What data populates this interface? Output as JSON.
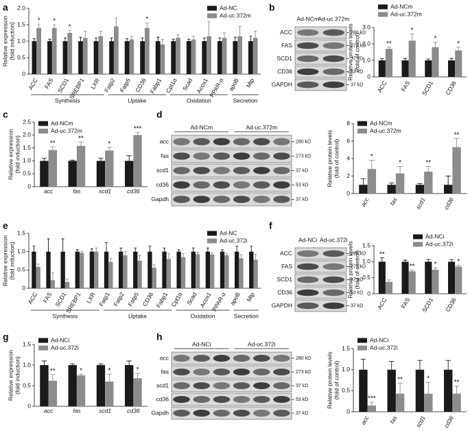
{
  "panels": [
    "a",
    "b",
    "c",
    "d",
    "e",
    "f",
    "g",
    "h"
  ],
  "blots": [
    {
      "headers": [
        "Ad-NCm",
        "Ad-uc.372m"
      ],
      "rows": [
        {
          "label": "ACC",
          "size": "280 kD"
        },
        {
          "label": "FAS",
          "size": "273 kD"
        },
        {
          "label": "SCD1",
          "size": "37 kD"
        },
        {
          "label": "CD36",
          "size": "53 kD"
        },
        {
          "label": "GAPDH",
          "size": "37 kD"
        }
      ]
    },
    {
      "headers": [
        "Ad-NCm",
        "Ad-uc.372m"
      ],
      "rows": [
        {
          "label": "acc",
          "size": "280 kD"
        },
        {
          "label": "fas",
          "size": "273 kD"
        },
        {
          "label": "scd1",
          "size": "37 kD"
        },
        {
          "label": "cd36",
          "size": "53 kD"
        },
        {
          "label": "Gapdh",
          "size": "37 kD"
        }
      ]
    },
    {
      "headers": [
        "Ad-NCi",
        "Ad-uc.372i"
      ],
      "rows": [
        {
          "label": "ACC",
          "size": "280 kD"
        },
        {
          "label": "FAS",
          "size": "273 kD"
        },
        {
          "label": "SCD1",
          "size": "37 kD"
        },
        {
          "label": "CD36",
          "size": "53 kD"
        },
        {
          "label": "GAPDH",
          "size": "37 kD"
        }
      ]
    },
    {
      "headers": [
        "Ad-NCi",
        "Ad-uc.372i"
      ],
      "rows": [
        {
          "label": "acc",
          "size": "280 kD"
        },
        {
          "label": "fas",
          "size": "273 kD"
        },
        {
          "label": "scd1",
          "size": "37 kD"
        },
        {
          "label": "cd36",
          "size": "53 kD"
        },
        {
          "label": "Gapdh",
          "size": "37 kD"
        }
      ]
    }
  ],
  "chart_data": [
    {
      "type": "bar",
      "ylabel": [
        "Relative expression",
        "(fold induction)"
      ],
      "legend": "upper right",
      "categories": [
        "ACC",
        "FAS",
        "SCD1",
        "SREBP1",
        "LXR",
        "Fatp2",
        "Fatp5",
        "CD36",
        "Fabp1",
        "Cpt1α",
        "Scad",
        "Acox1",
        "PPAR-α",
        "apoB",
        "Mtp"
      ],
      "series": [
        {
          "name": "Ad-NC",
          "color": "#1a1a1a",
          "values": [
            1,
            1,
            1,
            1,
            1,
            1,
            1,
            1,
            1,
            1,
            1,
            1,
            1,
            1,
            1
          ],
          "errors": [
            0.08,
            0.06,
            0.1,
            0.12,
            0.1,
            0.1,
            0.08,
            0.1,
            0.12,
            0.06,
            0.06,
            0.1,
            0.1,
            0.12,
            0.15
          ]
        },
        {
          "name": "Ad-uc.372m",
          "color": "#8c8c8c",
          "values": [
            1.4,
            1.4,
            1.25,
            1.1,
            1.15,
            1.45,
            1.05,
            1.4,
            0.9,
            1.1,
            1.05,
            1.15,
            1.1,
            1.15,
            1.1
          ],
          "errors": [
            0.12,
            0.1,
            0.08,
            0.2,
            0.15,
            0.25,
            0.1,
            0.15,
            0.15,
            0.1,
            0.1,
            0.45,
            0.15,
            0.3,
            0.2
          ]
        }
      ],
      "annotations": [
        {
          "series": 1,
          "category": 0,
          "text": "*"
        },
        {
          "series": 1,
          "category": 1,
          "text": "*"
        },
        {
          "series": 1,
          "category": 2,
          "text": "*"
        },
        {
          "series": 1,
          "category": 7,
          "text": "*"
        }
      ],
      "groups": [
        {
          "label": "Synthesis",
          "start": 0,
          "end": 4
        },
        {
          "label": "Uptake",
          "start": 5,
          "end": 8
        },
        {
          "label": "Oxidation",
          "start": 9,
          "end": 12
        },
        {
          "label": "Secretion",
          "start": 13,
          "end": 14
        }
      ],
      "ylim": [
        0,
        2
      ],
      "yticks": [
        0,
        0.5,
        {
          "value": 1,
          "label": "1.0"
        },
        1.5,
        {
          "value": 2,
          "label": "2.0"
        }
      ]
    },
    {
      "type": "bar",
      "ylabel": [
        "Relative protein levels",
        "(fold of control)"
      ],
      "legend": "upper left",
      "categories": [
        "ACC",
        "FAS",
        "SCD1",
        "CD36"
      ],
      "series": [
        {
          "name": "Ad-NCm",
          "color": "#1a1a1a",
          "values": [
            1,
            1,
            1,
            1
          ],
          "errors": [
            0.1,
            0.12,
            0.08,
            0.12
          ]
        },
        {
          "name": "Ad-uc.372m",
          "color": "#8c8c8c",
          "values": [
            1.7,
            2.2,
            1.8,
            1.6
          ],
          "errors": [
            0.1,
            0.4,
            0.3,
            0.2
          ]
        }
      ],
      "annotations": [
        {
          "series": 1,
          "category": 0,
          "text": "**"
        },
        {
          "series": 1,
          "category": 1,
          "text": "*"
        },
        {
          "series": 1,
          "category": 2,
          "text": "*"
        },
        {
          "series": 1,
          "category": 3,
          "text": "*"
        }
      ],
      "ylim": [
        0,
        3
      ],
      "yticks": [
        0,
        {
          "value": 1,
          "label": "1.0"
        },
        {
          "value": 2,
          "label": "2.0"
        },
        {
          "value": 3,
          "label": "3.0"
        }
      ]
    },
    {
      "type": "bar",
      "ylabel": [
        "Relative expression",
        "(fold induction)"
      ],
      "legend": "upper left",
      "categories": [
        "acc",
        "fas",
        "scd1",
        "cd36"
      ],
      "series": [
        {
          "name": "Ad-NCm",
          "color": "#1a1a1a",
          "values": [
            1,
            1,
            1,
            1
          ],
          "errors": [
            0.1,
            0.03,
            0.1,
            0.2
          ]
        },
        {
          "name": "Ad-uc.372m",
          "color": "#8c8c8c",
          "values": [
            1.42,
            1.58,
            1.4,
            2.0
          ],
          "errors": [
            0.12,
            0.15,
            0.12,
            0.1
          ]
        }
      ],
      "annotations": [
        {
          "series": 1,
          "category": 0,
          "text": "**"
        },
        {
          "series": 1,
          "category": 1,
          "text": "**"
        },
        {
          "series": 1,
          "category": 2,
          "text": "*"
        },
        {
          "series": 1,
          "category": 3,
          "text": "***"
        }
      ],
      "ylim": [
        0,
        2.5
      ],
      "yticks": [
        0,
        0.5,
        {
          "value": 1,
          "label": "1.0"
        },
        1.5,
        {
          "value": 2,
          "label": "2.0"
        },
        2.5
      ]
    },
    {
      "type": "bar",
      "ylabel": [
        "Relative protein levels",
        "(fold of control)"
      ],
      "legend": "upper left",
      "categories": [
        "acc",
        "fas",
        "scd1",
        "cd36"
      ],
      "series": [
        {
          "name": "Ad-NCm",
          "color": "#1a1a1a",
          "values": [
            1,
            1,
            1,
            1
          ],
          "errors": [
            0.7,
            0.2,
            0.15,
            1.0
          ]
        },
        {
          "name": "Ad-uc.372m",
          "color": "#8c8c8c",
          "values": [
            2.8,
            2.3,
            2.5,
            5.3
          ],
          "errors": [
            1.0,
            0.8,
            0.6,
            1.0
          ]
        }
      ],
      "annotations": [
        {
          "series": 1,
          "category": 0,
          "text": "*"
        },
        {
          "series": 1,
          "category": 1,
          "text": "*"
        },
        {
          "series": 1,
          "category": 2,
          "text": "**"
        },
        {
          "series": 1,
          "category": 3,
          "text": "**"
        }
      ],
      "ylim": [
        0,
        8
      ],
      "yticks": [
        0,
        2,
        4,
        6,
        8
      ]
    },
    {
      "type": "bar",
      "ylabel": [
        "Relative expression",
        "(fold induction)"
      ],
      "legend": "upper right",
      "categories": [
        "ACC",
        "FAS",
        "SCD1",
        "SREBP1",
        "LXR",
        "Fatp1",
        "Fatp2",
        "Fatp5",
        "CD36",
        "Fabp1",
        "Cpt1α",
        "Scad",
        "Acox1",
        "PPAR-α",
        "apoB",
        "Mtp"
      ],
      "series": [
        {
          "name": "Ad-NC",
          "color": "#1a1a1a",
          "values": [
            1,
            1,
            1,
            1,
            1,
            1,
            1,
            1,
            1,
            1,
            1,
            1,
            1,
            1,
            1,
            1
          ],
          "errors": [
            0.15,
            0.35,
            0.35,
            0.05,
            0.08,
            0.25,
            0.1,
            0.1,
            0.15,
            0.1,
            0.05,
            0.1,
            0.1,
            0.05,
            0.15,
            0.15
          ]
        },
        {
          "name": "Ad-uc.372i",
          "color": "#8c8c8c",
          "values": [
            0.58,
            0.22,
            0.17,
            0.97,
            1.0,
            0.72,
            0.9,
            0.75,
            0.56,
            0.8,
            0.85,
            0.93,
            0.92,
            0.9,
            0.82,
            0.78
          ],
          "errors": [
            0.08,
            0.2,
            0.08,
            0.04,
            0.1,
            0.1,
            0.1,
            0.15,
            0.08,
            0.15,
            0.1,
            0.05,
            0.05,
            0.05,
            0.1,
            0.15
          ]
        }
      ],
      "groups": [
        {
          "label": "Synthesis",
          "start": 0,
          "end": 4
        },
        {
          "label": "Uptake",
          "start": 5,
          "end": 9
        },
        {
          "label": "Oxidation",
          "start": 10,
          "end": 13
        },
        {
          "label": "Secretion",
          "start": 14,
          "end": 15
        }
      ],
      "ylim": [
        0,
        1.5
      ],
      "yticks": [
        0,
        0.5,
        {
          "value": 1,
          "label": "1.0"
        },
        1.5
      ]
    },
    {
      "type": "bar",
      "ylabel": [
        "Relative protein levels",
        "(fold of control)"
      ],
      "legend": "upper right",
      "categories": [
        "ACC",
        "FAS",
        "SCD1",
        "CD36"
      ],
      "series": [
        {
          "name": "Ad-NCi",
          "color": "#1a1a1a",
          "values": [
            1,
            1,
            1,
            1
          ],
          "errors": [
            0.12,
            0.05,
            0.07,
            0.06
          ]
        },
        {
          "name": "Ad-uc.372i",
          "color": "#8c8c8c",
          "values": [
            0.37,
            0.7,
            0.75,
            0.85
          ],
          "errors": [
            0.06,
            0.04,
            0.06,
            0.04
          ]
        }
      ],
      "annotations": [
        {
          "series": 0,
          "category": 0,
          "text": "**"
        },
        {
          "series": 1,
          "category": 1,
          "text": "**"
        },
        {
          "series": 1,
          "category": 2,
          "text": "*"
        },
        {
          "series": 1,
          "category": 3,
          "text": "*"
        }
      ],
      "ylim": [
        0,
        1.5
      ],
      "yticks": [
        0,
        0.5,
        {
          "value": 1,
          "label": "1.0"
        },
        1.5
      ]
    },
    {
      "type": "bar",
      "ylabel": [
        "Relative expression",
        "(fold induction)"
      ],
      "legend": "upper left",
      "categories": [
        "acc",
        "fas",
        "scd1",
        "cd36"
      ],
      "series": [
        {
          "name": "Ad-NCi",
          "color": "#1a1a1a",
          "values": [
            1,
            1,
            1,
            1
          ],
          "errors": [
            0.1,
            0.03,
            0.03,
            0.1
          ]
        },
        {
          "name": "Ad-uc.372i",
          "color": "#8c8c8c",
          "values": [
            0.62,
            0.75,
            0.6,
            0.68
          ],
          "errors": [
            0.15,
            0.03,
            0.18,
            0.12
          ]
        }
      ],
      "annotations": [
        {
          "series": 1,
          "category": 0,
          "text": "**"
        },
        {
          "series": 1,
          "category": 1,
          "text": "*"
        },
        {
          "series": 1,
          "category": 2,
          "text": "*"
        },
        {
          "series": 1,
          "category": 3,
          "text": "*"
        }
      ],
      "ylim": [
        0,
        1.5
      ],
      "yticks": [
        0,
        0.5,
        {
          "value": 1,
          "label": "1.0"
        },
        1.5
      ]
    },
    {
      "type": "bar",
      "ylabel": [
        "Relative protein levels",
        "(fold of control)"
      ],
      "legend": "upper left",
      "categories": [
        "acc",
        "fas",
        "scd1",
        "cd36"
      ],
      "series": [
        {
          "name": "Ad-NCi",
          "color": "#1a1a1a",
          "values": [
            1,
            1,
            1,
            1
          ],
          "errors": [
            0.25,
            0.2,
            0.22,
            0.22
          ]
        },
        {
          "name": "Ad-uc.372i",
          "color": "#8c8c8c",
          "values": [
            0.15,
            0.43,
            0.43,
            0.43
          ],
          "errors": [
            0.08,
            0.25,
            0.27,
            0.18
          ]
        }
      ],
      "annotations": [
        {
          "series": 1,
          "category": 0,
          "text": "***"
        },
        {
          "series": 1,
          "category": 1,
          "text": "**"
        },
        {
          "series": 1,
          "category": 2,
          "text": "*"
        },
        {
          "series": 1,
          "category": 3,
          "text": "**"
        }
      ],
      "ylim": [
        0,
        1.5
      ],
      "yticks": [
        0,
        0.5,
        {
          "value": 1,
          "label": "1.0"
        },
        1.5
      ]
    }
  ]
}
